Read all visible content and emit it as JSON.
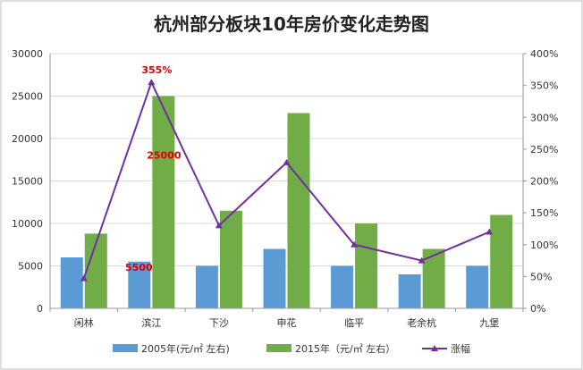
{
  "chart_data": {
    "type": "bar",
    "title": "杭州部分板块10年房价变化走势图",
    "categories": [
      "闲林",
      "滨江",
      "下沙",
      "申花",
      "临平",
      "老余杭",
      "九堡"
    ],
    "series": [
      {
        "name": "2005年(元/㎡ 左右)",
        "type": "bar",
        "axis": "left",
        "color": "#5b9bd5",
        "values": [
          6000,
          5500,
          5000,
          7000,
          5000,
          4000,
          5000
        ]
      },
      {
        "name": "2015年（元/㎡ 左右）",
        "type": "bar",
        "axis": "left",
        "color": "#70ad47",
        "values": [
          8800,
          25000,
          11500,
          23000,
          10000,
          7000,
          11000
        ]
      },
      {
        "name": "涨幅",
        "type": "line",
        "axis": "right",
        "color": "#7030a0",
        "values": [
          47,
          355,
          130,
          229,
          100,
          75,
          120
        ]
      }
    ],
    "y_left": {
      "lim": [
        0,
        30000
      ],
      "ticks": [
        "0",
        "5000",
        "10000",
        "15000",
        "20000",
        "25000",
        "30000"
      ]
    },
    "y_right": {
      "lim": [
        0,
        400
      ],
      "ticks": [
        "0%",
        "50%",
        "100%",
        "150%",
        "200%",
        "250%",
        "300%",
        "350%",
        "400%"
      ]
    },
    "annotations": [
      {
        "text": "355%",
        "series": 2,
        "index": 1
      },
      {
        "text": "25000",
        "series": 1,
        "index": 1
      },
      {
        "text": "5500",
        "series": 0,
        "index": 1
      }
    ],
    "grid": true,
    "legend_position": "bottom"
  }
}
